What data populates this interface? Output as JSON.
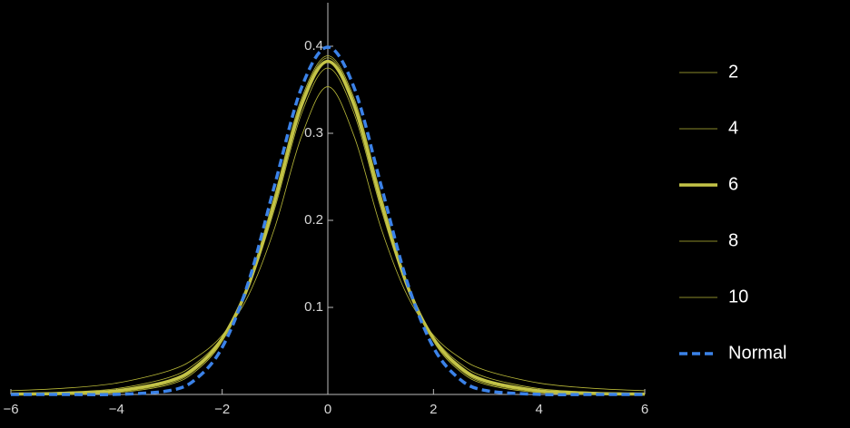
{
  "chart_data": {
    "type": "line",
    "x": [
      -6,
      -5,
      -4,
      -3,
      -2.5,
      -2,
      -1.5,
      -1,
      -0.5,
      0,
      0.5,
      1,
      1.5,
      2,
      2.5,
      3,
      4,
      5,
      6
    ],
    "series": [
      {
        "name": "2",
        "color": "#b8b838",
        "width": 0.8,
        "dashed": false,
        "values": [
          0.0043,
          0.0071,
          0.0131,
          0.0274,
          0.0422,
          0.068,
          0.1141,
          0.1925,
          0.2963,
          0.3536,
          0.2963,
          0.1925,
          0.1141,
          0.068,
          0.0422,
          0.0274,
          0.0131,
          0.0071,
          0.0043
        ]
      },
      {
        "name": "4",
        "color": "#b8b838",
        "width": 0.8,
        "dashed": false,
        "values": [
          0.0012,
          0.0027,
          0.0067,
          0.0197,
          0.0357,
          0.0663,
          0.1229,
          0.2147,
          0.3223,
          0.375,
          0.3223,
          0.2147,
          0.1229,
          0.0663,
          0.0357,
          0.0197,
          0.0067,
          0.0027,
          0.0012
        ]
      },
      {
        "name": "6",
        "color": "#c4c448",
        "width": 3.5,
        "dashed": false,
        "values": [
          0.0004,
          0.0012,
          0.0041,
          0.0155,
          0.0315,
          0.064,
          0.1256,
          0.2231,
          0.3318,
          0.3827,
          0.3318,
          0.2231,
          0.1256,
          0.064,
          0.0315,
          0.0155,
          0.0041,
          0.0012,
          0.0004
        ]
      },
      {
        "name": "8",
        "color": "#b8b838",
        "width": 0.8,
        "dashed": false,
        "values": [
          0.0002,
          0.0007,
          0.0028,
          0.013,
          0.0288,
          0.0624,
          0.1268,
          0.2276,
          0.3367,
          0.3867,
          0.3367,
          0.2276,
          0.1268,
          0.0624,
          0.0288,
          0.013,
          0.0028,
          0.0007,
          0.0002
        ]
      },
      {
        "name": "10",
        "color": "#b8b838",
        "width": 0.8,
        "dashed": false,
        "values": [
          0.0001,
          0.0004,
          0.002,
          0.0114,
          0.0269,
          0.0611,
          0.1274,
          0.2304,
          0.3397,
          0.3891,
          0.3397,
          0.2304,
          0.1274,
          0.0611,
          0.0269,
          0.0114,
          0.002,
          0.0004,
          0.0001
        ]
      },
      {
        "name": "Normal",
        "color": "#3b82e8",
        "width": 3.5,
        "dashed": true,
        "values": [
          0,
          0,
          0.0001,
          0.0044,
          0.0175,
          0.054,
          0.1295,
          0.242,
          0.3521,
          0.3989,
          0.3521,
          0.242,
          0.1295,
          0.054,
          0.0175,
          0.0044,
          0.0001,
          0,
          0
        ]
      }
    ],
    "xlim": [
      -6,
      6
    ],
    "ylim": [
      0,
      0.45
    ],
    "xticks": [
      {
        "value": -6,
        "label": "−6"
      },
      {
        "value": -4,
        "label": "−4"
      },
      {
        "value": -2,
        "label": "−2"
      },
      0,
      2,
      4,
      6
    ],
    "yticks": [
      0.1,
      0.2,
      0.3,
      0.4
    ],
    "legend": "right"
  }
}
